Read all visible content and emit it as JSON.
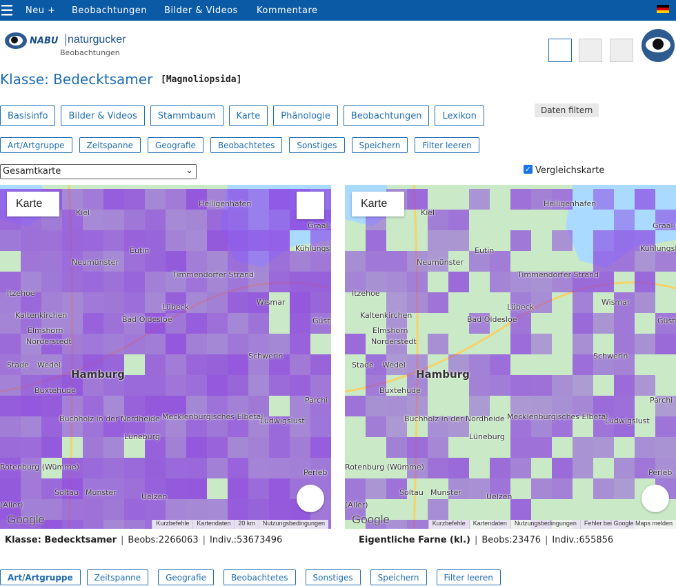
{
  "nav": {
    "items": [
      "Neu +",
      "Beobachtungen",
      "Bilder & Videos",
      "Kommentare"
    ]
  },
  "logo": {
    "brand": "NABU",
    "name": "naturgucker",
    "sub": "Beobachtungen"
  },
  "title": "Klasse: Bedecktsamer",
  "subtitle": "[Magnoliopsida]",
  "tabs": [
    "Basisinfo",
    "Bilder & Videos",
    "Stammbaum",
    "Karte",
    "Phänologie",
    "Beobachtungen",
    "Lexikon"
  ],
  "filter_button": "Daten filtern",
  "filters": [
    "Art/Artgruppe",
    "Zeitspanne",
    "Geografie",
    "Beobachtetes",
    "Sonstiges",
    "Speichern",
    "Filter leeren"
  ],
  "select": "Gesamtkarte",
  "compare": "Vergleichskarte",
  "map_control": "Karte",
  "google": "Google",
  "places": [
    "Kiel",
    "Heiligenhafen",
    "Graal-M",
    "Eutin",
    "Neumünster",
    "Kühlungsb",
    "Timmendorfer Strand",
    "Itzehoe",
    "Lübeck",
    "Wismar",
    "Kaltenkirchen",
    "Bad Oldesloe",
    "Güstr",
    "Elmshorn",
    "Norderstedt",
    "Schwerin",
    "Stade",
    "Wedel",
    "Hamburg",
    "Buxtehude",
    "Parchi",
    "Buchholz in der Nordheide",
    "Mecklenburgisches Elbetal",
    "Ludwigslust",
    "Lüneburg",
    "Rotenburg (Wümme)",
    "Perleb",
    "Soltau",
    "Munster",
    "Uelzen",
    "(Aller)"
  ],
  "map_footer": [
    "Kurzbefehle",
    "Kartendaten",
    "20 km",
    "Nutzungsbedingungen",
    "Fehler bei Google Maps melden"
  ],
  "separator": "|",
  "maps": [
    {
      "taxon": "Klasse: Bedecktsamer",
      "beobs": "Beobs:2266063",
      "indiv": "Indiv.:53673496"
    },
    {
      "taxon": "Eigentliche Farne (kl.)",
      "beobs": "Beobs:23476",
      "indiv": "Indiv.:655856"
    }
  ]
}
